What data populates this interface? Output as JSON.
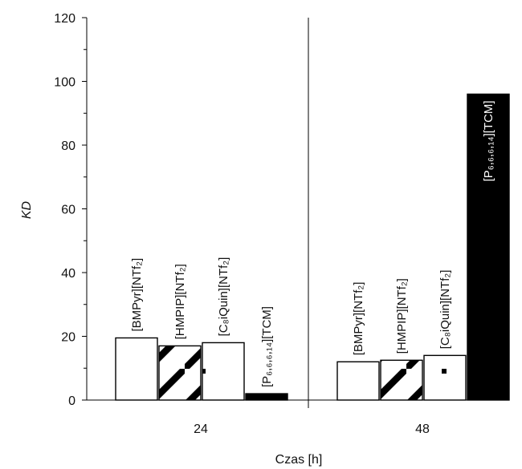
{
  "chart_data": {
    "type": "bar",
    "xlabel": "Czas [h]",
    "ylabel": "KD",
    "ylim": [
      0,
      120
    ],
    "yticks": [
      0,
      20,
      40,
      60,
      80,
      100,
      120
    ],
    "categories": [
      "24",
      "48"
    ],
    "series": [
      {
        "name": "[BMPyr][NTf2]",
        "label": "[BMPyr][NTf₂]",
        "pattern": "white",
        "values": [
          19.5,
          12
        ]
      },
      {
        "name": "[HMPIP][NTf2]",
        "label": "[HMPIP][NTf₂]",
        "pattern": "diagonal",
        "values": [
          17,
          12.5
        ]
      },
      {
        "name": "[C8iQuin][NTf2]",
        "label": "[C₈iQuin][NTf₂]",
        "pattern": "sparse",
        "values": [
          18,
          14
        ]
      },
      {
        "name": "[P6,6,6,14][TCM]",
        "label": "[P₆,₆,₆,₁₄][TCM]",
        "pattern": "black",
        "values": [
          2,
          96
        ]
      }
    ],
    "grid": false,
    "legend": "none",
    "colors": {
      "fill": "#ffffff",
      "dark": "#000000"
    }
  }
}
